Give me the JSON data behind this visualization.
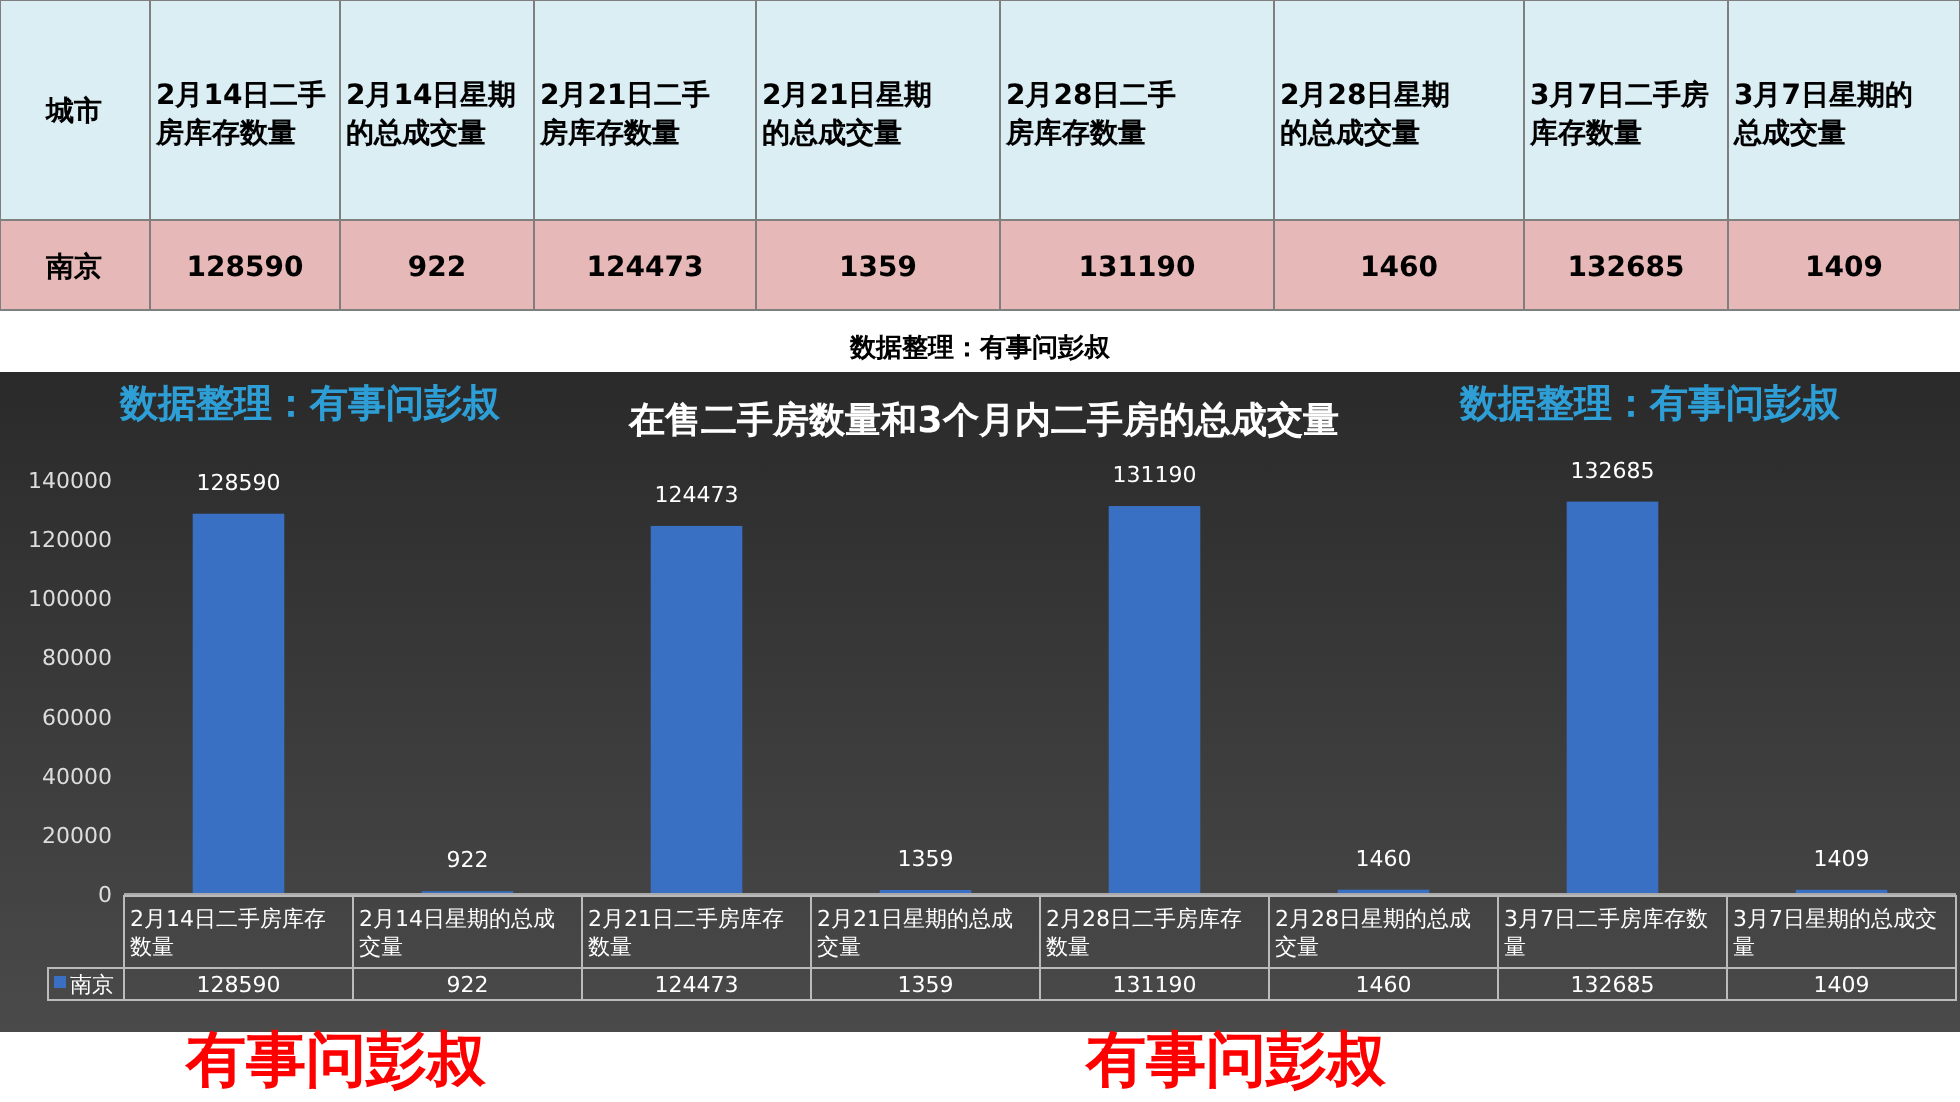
{
  "chart_data": [
    {
      "type": "other",
      "legend_title": "城市",
      "data_labels": true,
      "categories": [
        "2月14日二手房库存数量",
        "2月14日星期的总成交量",
        "2月21日二手房库存数量",
        "2月21日星期的总成交量",
        "2月28日二手房库存数量",
        "2月28日星期的总成交量",
        "3月7日二手房库存数量",
        "3月7日星期的总成交量"
      ],
      "series": [
        {
          "name": "南京",
          "values": [
            128590,
            922,
            124473,
            1359,
            131190,
            1460,
            132685,
            1409
          ]
        }
      ],
      "annotations": [
        "数据整理：有事问彭叔"
      ]
    },
    {
      "type": "bar",
      "title": "在售二手房数量和3个月内二手房的总成交量",
      "categories": [
        "2月14日二手房库存数量",
        "2月14日星期的总成交量",
        "2月21日二手房库存数量",
        "2月21日星期的总成交量",
        "2月28日二手房库存数量",
        "2月28日星期的总成交量",
        "3月7日二手房库存数量",
        "3月7日星期的总成交量"
      ],
      "series": [
        {
          "name": "南京",
          "color": "#3a70c4",
          "values": [
            128590,
            922,
            124473,
            1359,
            131190,
            1460,
            132685,
            1409
          ],
          "value_labels": [
            "128590",
            "922",
            "124473",
            "1359",
            "131190",
            "1460",
            "132685",
            "1409"
          ]
        }
      ],
      "ylim": [
        0,
        140000
      ],
      "yticks": [
        0,
        20000,
        40000,
        60000,
        80000,
        100000,
        120000,
        140000
      ],
      "data_labels": true,
      "grid": false,
      "legend": "bottom",
      "annotations": [
        "数据整理：有事问彭叔",
        "数据整理：有事问彭叔",
        "有事问彭叔",
        "有事问彭叔"
      ]
    }
  ]
}
